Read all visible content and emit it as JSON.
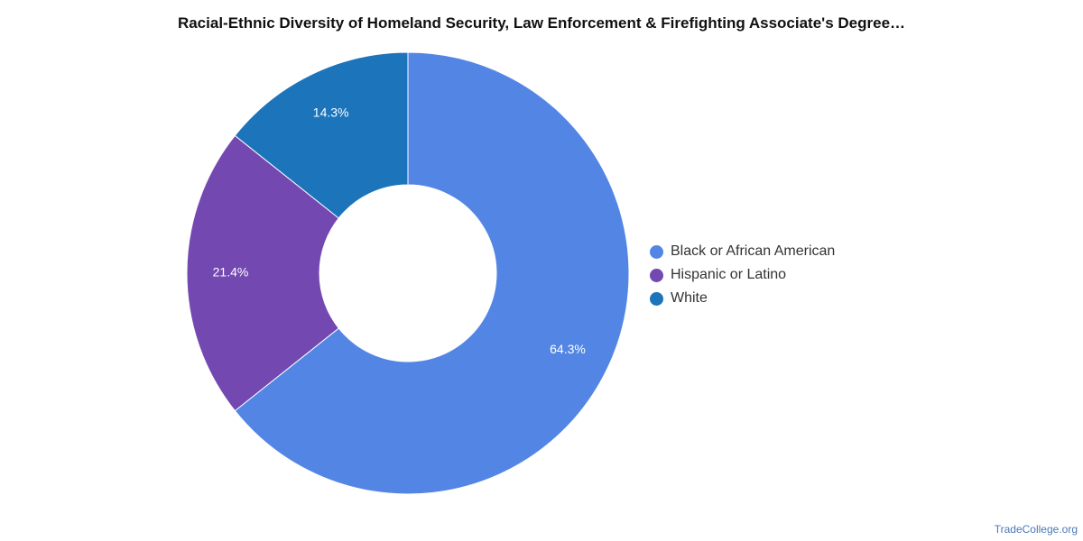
{
  "chart_data": {
    "type": "pie",
    "variant": "donut",
    "title": "Racial-Ethnic Diversity of Homeland Security, Law Enforcement & Firefighting Associate's Degree…",
    "categories": [
      "Black or African American",
      "Hispanic or Latino",
      "White"
    ],
    "values": [
      64.3,
      21.4,
      14.3
    ],
    "value_labels": [
      "64.3%",
      "21.4%",
      "14.3%"
    ],
    "colors": [
      "#5386e4",
      "#7448b1",
      "#1c74bb"
    ],
    "legend_position": "right"
  },
  "footer": {
    "source": "TradeCollege.org"
  }
}
